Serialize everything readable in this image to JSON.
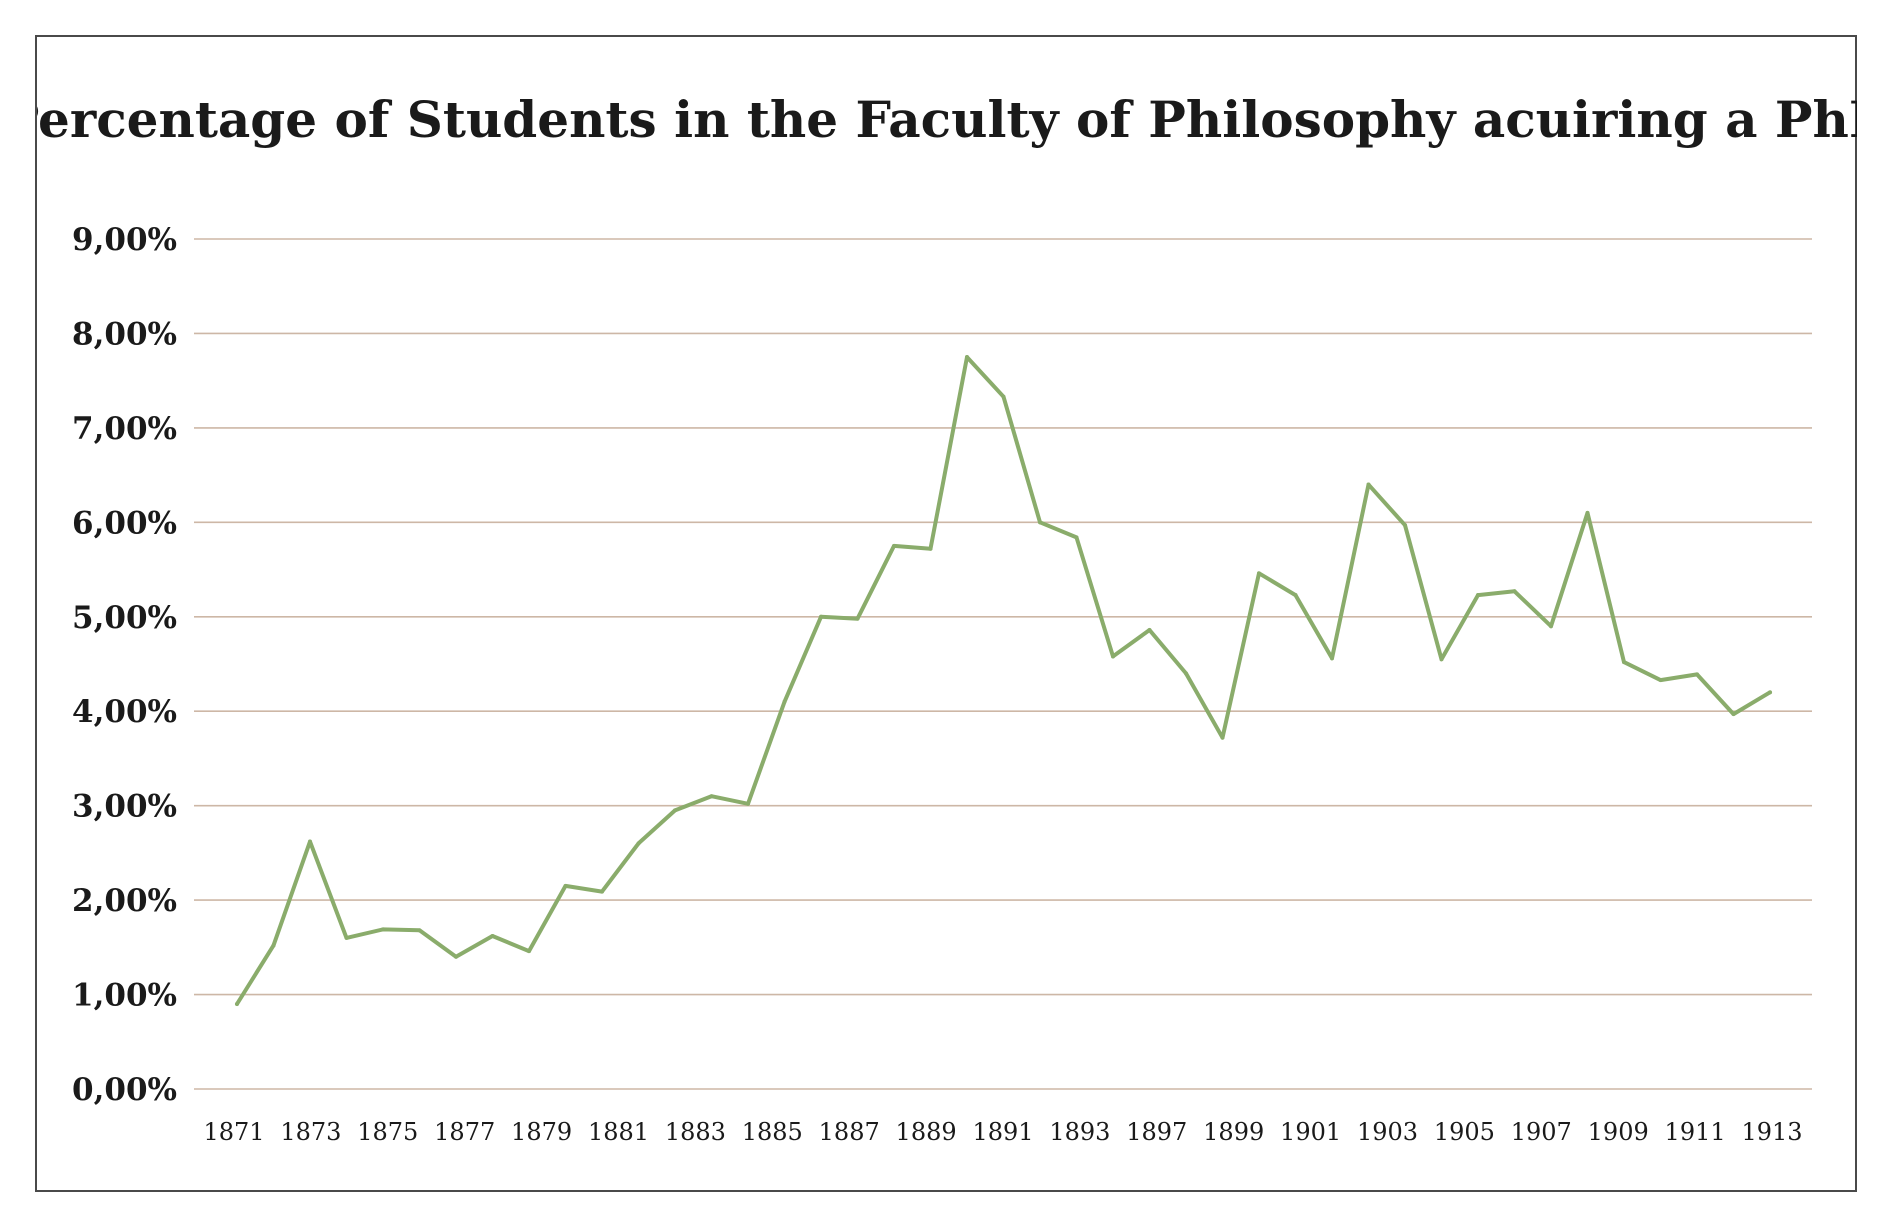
{
  "chart_data": {
    "type": "line",
    "title": "Percentage of Students in the Faculty of Philosophy acuiring a PhD",
    "xlabel": "",
    "ylabel": "",
    "ylim": [
      0,
      9
    ],
    "y_ticks": [
      "0,00%",
      "1,00%",
      "2,00%",
      "3,00%",
      "4,00%",
      "5,00%",
      "6,00%",
      "7,00%",
      "8,00%",
      "9,00%"
    ],
    "x_tick_labels": [
      "1871",
      "1873",
      "1875",
      "1877",
      "1879",
      "1881",
      "1883",
      "1885",
      "1887",
      "1889",
      "1891",
      "1893",
      "1897",
      "1899",
      "1901",
      "1903",
      "1905",
      "1907",
      "1909",
      "1911",
      "1913"
    ],
    "grid": true,
    "legend": "none",
    "colors": {
      "line": "#8aac6b",
      "grid": "#cdb7a6",
      "frame": "#4a4a4a"
    },
    "series": [
      {
        "values": [
          0.9,
          1.52,
          2.62,
          1.6,
          1.69,
          1.68,
          1.4,
          1.62,
          1.46,
          2.15,
          2.09,
          2.6,
          2.95,
          3.1,
          3.02,
          4.1,
          5.0,
          4.98,
          5.75,
          5.72,
          7.75,
          7.33,
          6.0,
          5.84,
          4.58,
          4.86,
          4.4,
          3.72,
          5.46,
          5.23,
          4.56,
          6.4,
          5.97,
          4.55,
          5.23,
          5.27,
          4.9,
          6.1,
          4.52,
          4.33,
          4.39,
          3.97,
          4.2
        ]
      }
    ]
  }
}
